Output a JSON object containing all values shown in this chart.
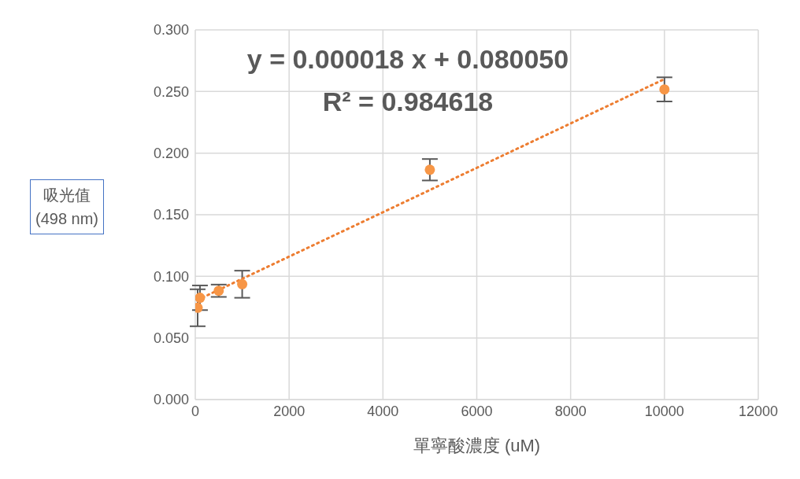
{
  "chart_data": {
    "type": "scatter",
    "xlabel": "單寧酸濃度 (uM)",
    "ylabel": "吸光值\n(498 nm)",
    "annotations": [
      "y = 0.000018 x + 0.080050",
      "R² = 0.984618"
    ],
    "xlim": [
      0,
      12000
    ],
    "xticks": [
      0,
      2000,
      4000,
      6000,
      8000,
      10000,
      12000
    ],
    "ylim": [
      0,
      0.3
    ],
    "yticks": [
      {
        "value": 0,
        "label": "0.000"
      },
      {
        "value": 0.05,
        "label": "0.050"
      },
      {
        "value": 0.1,
        "label": "0.100"
      },
      {
        "value": 0.15,
        "label": "0.150"
      },
      {
        "value": 0.2,
        "label": "0.200"
      },
      {
        "value": 0.25,
        "label": "0.250"
      },
      {
        "value": 0.3,
        "label": "0.300"
      }
    ],
    "grid": true,
    "series": [
      {
        "color": "#f79646",
        "marker": "circle",
        "x": [
          50,
          100,
          500,
          1000,
          5000,
          10000
        ],
        "values": [
          0.0745,
          0.0826,
          0.0883,
          0.0936,
          0.1865,
          0.2517
        ],
        "errors": [
          0.015,
          0.01,
          0.005,
          0.011,
          0.0087,
          0.0098
        ]
      },
      {
        "type": "line",
        "color": "#ed7d31",
        "line_style": "dotted",
        "x": [
          50,
          10000
        ],
        "values": [
          0.0809,
          0.2601
        ]
      }
    ]
  }
}
